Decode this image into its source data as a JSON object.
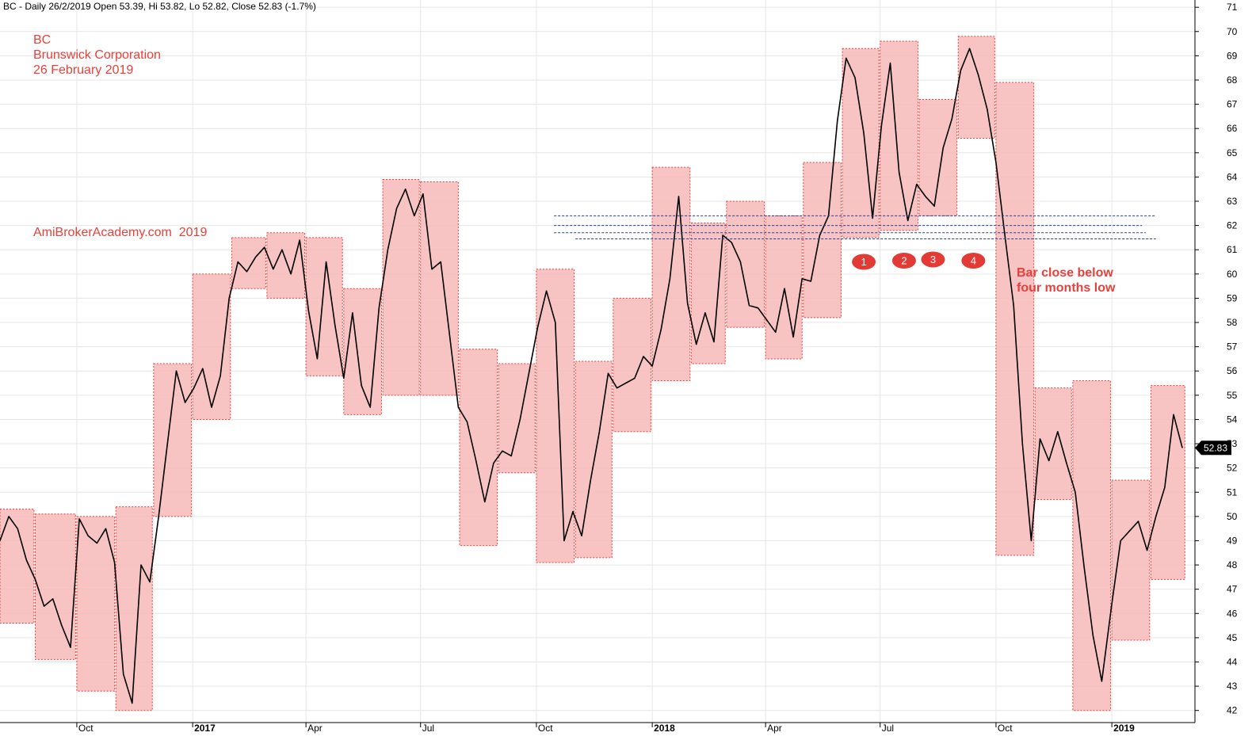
{
  "header": {
    "text": "BC - Daily 26/2/2019 Open 53.39, Hi 53.82, Lo 52.82, Close 52.83 (-1.7%)"
  },
  "notes": {
    "ticker": "BC",
    "company": "Brunswick Corporation",
    "date": "26 February 2019",
    "watermark": "AmiBrokerAcademy.com  2019",
    "annotation": "Bar close below four months low"
  },
  "colors": {
    "box_fill": "#f7b8b8",
    "box_border": "#e8413b",
    "price_line": "#000000",
    "support_line": "#1f3fa0",
    "marker": "#e23a35",
    "note_text": "#e8413b"
  },
  "chart_data": {
    "type": "line",
    "title": "",
    "xlabel": "",
    "ylabel": "",
    "ylim": [
      41.5,
      71.3
    ],
    "y_ticks": [
      42,
      43,
      44,
      45,
      46,
      47,
      48,
      49,
      50,
      51,
      52,
      53,
      54,
      55,
      56,
      57,
      58,
      59,
      60,
      61,
      62,
      63,
      64,
      65,
      66,
      67,
      68,
      69,
      70,
      71
    ],
    "x_ticks": [
      {
        "label": "Oct",
        "date": "2016-10-01",
        "year": false
      },
      {
        "label": "2017",
        "date": "2017-01-01",
        "year": true
      },
      {
        "label": "Apr",
        "date": "2017-04-01",
        "year": false
      },
      {
        "label": "Jul",
        "date": "2017-07-01",
        "year": false
      },
      {
        "label": "Oct",
        "date": "2017-10-01",
        "year": false
      },
      {
        "label": "2018",
        "date": "2018-01-01",
        "year": true
      },
      {
        "label": "Apr",
        "date": "2018-04-01",
        "year": false
      },
      {
        "label": "Jul",
        "date": "2018-07-01",
        "year": false
      },
      {
        "label": "Oct",
        "date": "2018-10-01",
        "year": false
      },
      {
        "label": "2019",
        "date": "2019-01-01",
        "year": true
      }
    ],
    "x_range": [
      "2016-08-01",
      "2019-03-08"
    ],
    "last_price": "52.83",
    "series": [
      {
        "points": [
          [
            "2016-08-01",
            49.0
          ],
          [
            "2016-08-08",
            50.0
          ],
          [
            "2016-08-15",
            49.5
          ],
          [
            "2016-08-22",
            48.2
          ],
          [
            "2016-08-29",
            47.4
          ],
          [
            "2016-09-05",
            46.3
          ],
          [
            "2016-09-12",
            46.6
          ],
          [
            "2016-09-19",
            45.5
          ],
          [
            "2016-09-26",
            44.6
          ],
          [
            "2016-10-03",
            49.9
          ],
          [
            "2016-10-10",
            49.2
          ],
          [
            "2016-10-17",
            48.9
          ],
          [
            "2016-10-24",
            49.5
          ],
          [
            "2016-10-31",
            48.1
          ],
          [
            "2016-11-07",
            43.5
          ],
          [
            "2016-11-14",
            42.3
          ],
          [
            "2016-11-21",
            48.0
          ],
          [
            "2016-11-28",
            47.3
          ],
          [
            "2016-12-05",
            50.0
          ],
          [
            "2016-12-12",
            53.0
          ],
          [
            "2016-12-19",
            56.0
          ],
          [
            "2016-12-26",
            54.7
          ],
          [
            "2017-01-02",
            55.3
          ],
          [
            "2017-01-09",
            56.1
          ],
          [
            "2017-01-16",
            54.5
          ],
          [
            "2017-01-23",
            55.8
          ],
          [
            "2017-01-30",
            59.0
          ],
          [
            "2017-02-06",
            60.5
          ],
          [
            "2017-02-13",
            60.1
          ],
          [
            "2017-02-20",
            60.7
          ],
          [
            "2017-02-27",
            61.1
          ],
          [
            "2017-03-06",
            60.2
          ],
          [
            "2017-03-13",
            61.0
          ],
          [
            "2017-03-20",
            60.0
          ],
          [
            "2017-03-27",
            61.4
          ],
          [
            "2017-04-03",
            58.5
          ],
          [
            "2017-04-10",
            56.5
          ],
          [
            "2017-04-17",
            60.5
          ],
          [
            "2017-04-24",
            57.9
          ],
          [
            "2017-05-01",
            55.7
          ],
          [
            "2017-05-08",
            58.4
          ],
          [
            "2017-05-15",
            55.4
          ],
          [
            "2017-05-22",
            54.5
          ],
          [
            "2017-05-29",
            58.6
          ],
          [
            "2017-06-05",
            61.0
          ],
          [
            "2017-06-12",
            62.7
          ],
          [
            "2017-06-19",
            63.5
          ],
          [
            "2017-06-26",
            62.4
          ],
          [
            "2017-07-03",
            63.3
          ],
          [
            "2017-07-10",
            60.2
          ],
          [
            "2017-07-17",
            60.5
          ],
          [
            "2017-07-24",
            57.5
          ],
          [
            "2017-07-31",
            54.5
          ],
          [
            "2017-08-07",
            53.9
          ],
          [
            "2017-08-14",
            52.3
          ],
          [
            "2017-08-21",
            50.6
          ],
          [
            "2017-08-28",
            52.2
          ],
          [
            "2017-09-04",
            52.7
          ],
          [
            "2017-09-11",
            52.5
          ],
          [
            "2017-09-18",
            54.0
          ],
          [
            "2017-09-25",
            55.9
          ],
          [
            "2017-10-02",
            57.8
          ],
          [
            "2017-10-09",
            59.3
          ],
          [
            "2017-10-16",
            58.0
          ],
          [
            "2017-10-23",
            49.0
          ],
          [
            "2017-10-30",
            50.2
          ],
          [
            "2017-11-06",
            49.2
          ],
          [
            "2017-11-13",
            51.5
          ],
          [
            "2017-11-20",
            53.5
          ],
          [
            "2017-11-27",
            55.9
          ],
          [
            "2017-12-04",
            55.3
          ],
          [
            "2017-12-11",
            55.5
          ],
          [
            "2017-12-18",
            55.7
          ],
          [
            "2017-12-25",
            56.6
          ],
          [
            "2018-01-01",
            56.2
          ],
          [
            "2018-01-08",
            57.7
          ],
          [
            "2018-01-15",
            59.8
          ],
          [
            "2018-01-22",
            63.2
          ],
          [
            "2018-01-29",
            58.8
          ],
          [
            "2018-02-05",
            57.1
          ],
          [
            "2018-02-12",
            58.4
          ],
          [
            "2018-02-19",
            57.2
          ],
          [
            "2018-02-26",
            61.6
          ],
          [
            "2018-03-05",
            61.3
          ],
          [
            "2018-03-12",
            60.5
          ],
          [
            "2018-03-19",
            58.7
          ],
          [
            "2018-03-26",
            58.6
          ],
          [
            "2018-04-02",
            58.1
          ],
          [
            "2018-04-09",
            57.6
          ],
          [
            "2018-04-16",
            59.4
          ],
          [
            "2018-04-23",
            57.4
          ],
          [
            "2018-04-30",
            59.8
          ],
          [
            "2018-05-07",
            59.7
          ],
          [
            "2018-05-14",
            61.6
          ],
          [
            "2018-05-21",
            62.4
          ],
          [
            "2018-05-28",
            66.3
          ],
          [
            "2018-06-04",
            68.9
          ],
          [
            "2018-06-11",
            68.1
          ],
          [
            "2018-06-18",
            65.8
          ],
          [
            "2018-06-25",
            62.3
          ],
          [
            "2018-07-02",
            66.1
          ],
          [
            "2018-07-09",
            68.7
          ],
          [
            "2018-07-16",
            64.2
          ],
          [
            "2018-07-23",
            62.2
          ],
          [
            "2018-07-30",
            63.7
          ],
          [
            "2018-08-06",
            63.2
          ],
          [
            "2018-08-13",
            62.8
          ],
          [
            "2018-08-20",
            65.2
          ],
          [
            "2018-08-27",
            66.4
          ],
          [
            "2018-09-03",
            68.4
          ],
          [
            "2018-09-10",
            69.3
          ],
          [
            "2018-09-17",
            68.2
          ],
          [
            "2018-09-24",
            66.8
          ],
          [
            "2018-10-01",
            64.6
          ],
          [
            "2018-10-08",
            61.6
          ],
          [
            "2018-10-15",
            58.7
          ],
          [
            "2018-10-22",
            53.0
          ],
          [
            "2018-10-29",
            49.0
          ],
          [
            "2018-11-05",
            53.2
          ],
          [
            "2018-11-12",
            52.3
          ],
          [
            "2018-11-19",
            53.5
          ],
          [
            "2018-11-26",
            52.2
          ],
          [
            "2018-12-03",
            51.0
          ],
          [
            "2018-12-10",
            47.9
          ],
          [
            "2018-12-17",
            45.1
          ],
          [
            "2018-12-24",
            43.2
          ],
          [
            "2019-01-01",
            46.4
          ],
          [
            "2019-01-08",
            49.0
          ],
          [
            "2019-01-15",
            49.4
          ],
          [
            "2019-01-22",
            49.8
          ],
          [
            "2019-01-29",
            48.6
          ],
          [
            "2019-02-05",
            50.0
          ],
          [
            "2019-02-12",
            51.2
          ],
          [
            "2019-02-19",
            54.2
          ],
          [
            "2019-02-26",
            52.83
          ]
        ]
      }
    ],
    "ranges": [
      {
        "start": "2016-08-01",
        "end": "2016-08-28",
        "hi": 50.3,
        "lo": 45.6
      },
      {
        "start": "2016-08-29",
        "end": "2016-09-30",
        "hi": 50.1,
        "lo": 44.1
      },
      {
        "start": "2016-10-01",
        "end": "2016-10-31",
        "hi": 50.0,
        "lo": 42.8
      },
      {
        "start": "2016-11-01",
        "end": "2016-11-30",
        "hi": 50.4,
        "lo": 42.0
      },
      {
        "start": "2016-12-01",
        "end": "2016-12-31",
        "hi": 56.3,
        "lo": 50.0
      },
      {
        "start": "2017-01-01",
        "end": "2017-01-31",
        "hi": 60.0,
        "lo": 54.0
      },
      {
        "start": "2017-02-01",
        "end": "2017-02-28",
        "hi": 61.5,
        "lo": 59.4
      },
      {
        "start": "2017-03-01",
        "end": "2017-03-31",
        "hi": 61.7,
        "lo": 59.0
      },
      {
        "start": "2017-04-01",
        "end": "2017-04-30",
        "hi": 61.5,
        "lo": 55.8
      },
      {
        "start": "2017-05-01",
        "end": "2017-05-31",
        "hi": 59.4,
        "lo": 54.2
      },
      {
        "start": "2017-06-01",
        "end": "2017-06-30",
        "hi": 63.9,
        "lo": 55.0
      },
      {
        "start": "2017-07-01",
        "end": "2017-07-31",
        "hi": 63.8,
        "lo": 55.0
      },
      {
        "start": "2017-08-01",
        "end": "2017-08-31",
        "hi": 56.9,
        "lo": 48.8
      },
      {
        "start": "2017-09-01",
        "end": "2017-09-30",
        "hi": 56.3,
        "lo": 51.8
      },
      {
        "start": "2017-10-01",
        "end": "2017-10-31",
        "hi": 60.2,
        "lo": 48.1
      },
      {
        "start": "2017-11-01",
        "end": "2017-11-30",
        "hi": 56.4,
        "lo": 48.3
      },
      {
        "start": "2017-12-01",
        "end": "2017-12-31",
        "hi": 59.0,
        "lo": 53.5
      },
      {
        "start": "2018-01-01",
        "end": "2018-01-31",
        "hi": 64.4,
        "lo": 55.6
      },
      {
        "start": "2018-02-01",
        "end": "2018-02-28",
        "hi": 62.1,
        "lo": 56.3
      },
      {
        "start": "2018-03-01",
        "end": "2018-03-31",
        "hi": 63.0,
        "lo": 57.8
      },
      {
        "start": "2018-04-01",
        "end": "2018-04-30",
        "hi": 62.4,
        "lo": 56.5
      },
      {
        "start": "2018-05-01",
        "end": "2018-05-31",
        "hi": 64.6,
        "lo": 58.2
      },
      {
        "start": "2018-06-01",
        "end": "2018-06-30",
        "hi": 69.3,
        "lo": 61.5
      },
      {
        "start": "2018-07-01",
        "end": "2018-07-31",
        "hi": 69.6,
        "lo": 61.8
      },
      {
        "start": "2018-08-01",
        "end": "2018-08-31",
        "hi": 67.2,
        "lo": 62.4
      },
      {
        "start": "2018-09-01",
        "end": "2018-09-30",
        "hi": 69.8,
        "lo": 65.6
      },
      {
        "start": "2018-10-01",
        "end": "2018-10-31",
        "hi": 67.9,
        "lo": 48.4
      },
      {
        "start": "2018-11-01",
        "end": "2018-11-30",
        "hi": 55.3,
        "lo": 50.7
      },
      {
        "start": "2018-12-01",
        "end": "2018-12-31",
        "hi": 55.6,
        "lo": 42.0
      },
      {
        "start": "2019-01-01",
        "end": "2019-01-31",
        "hi": 51.5,
        "lo": 44.9
      },
      {
        "start": "2019-02-01",
        "end": "2019-02-28",
        "hi": 55.4,
        "lo": 47.4
      }
    ],
    "support_lines": [
      {
        "start": "2017-10-15",
        "end": "2019-02-05",
        "value": 62.4
      },
      {
        "start": "2017-10-15",
        "end": "2019-01-25",
        "value": 62.0
      },
      {
        "start": "2017-10-15",
        "end": "2019-01-28",
        "value": 61.7
      },
      {
        "start": "2017-11-01",
        "end": "2019-02-05",
        "value": 61.45
      }
    ],
    "markers": [
      {
        "label": "1",
        "date": "2018-06-18",
        "value": 60.5
      },
      {
        "label": "2",
        "date": "2018-07-20",
        "value": 60.55
      },
      {
        "label": "3",
        "date": "2018-08-12",
        "value": 60.6
      },
      {
        "label": "4",
        "date": "2018-09-13",
        "value": 60.55
      }
    ]
  }
}
